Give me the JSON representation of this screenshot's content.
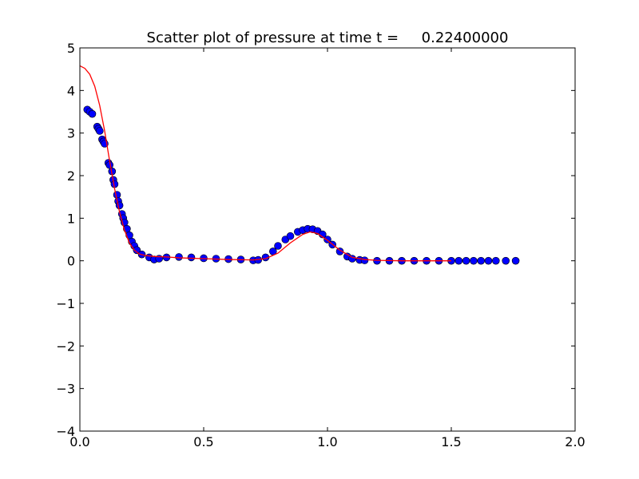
{
  "chart_data": {
    "type": "scatter",
    "title": "Scatter plot of pressure at time t =     0.22400000",
    "xlabel": "",
    "ylabel": "",
    "xlim": [
      0.0,
      2.0
    ],
    "ylim": [
      -4,
      5
    ],
    "x_ticks": [
      "0.0",
      "0.5",
      "1.0",
      "1.5",
      "2.0"
    ],
    "x_tick_values": [
      0.0,
      0.5,
      1.0,
      1.5,
      2.0
    ],
    "y_ticks": [
      "−4",
      "−3",
      "−2",
      "−1",
      "0",
      "1",
      "2",
      "3",
      "4",
      "5"
    ],
    "y_tick_values": [
      -4,
      -3,
      -2,
      -1,
      0,
      1,
      2,
      3,
      4,
      5
    ],
    "grid": false,
    "legend": "none",
    "colors": {
      "points_fill": "#0000ff",
      "points_edge": "#000000",
      "line": "#ff0000",
      "axes": "#000000"
    },
    "series": [
      {
        "kind": "points",
        "x": [
          0.03,
          0.04,
          0.05,
          0.07,
          0.075,
          0.08,
          0.09,
          0.095,
          0.1,
          0.115,
          0.12,
          0.13,
          0.135,
          0.14,
          0.15,
          0.155,
          0.16,
          0.17,
          0.175,
          0.18,
          0.19,
          0.2,
          0.21,
          0.22,
          0.23,
          0.25,
          0.28,
          0.3,
          0.32,
          0.35,
          0.4,
          0.45,
          0.5,
          0.55,
          0.6,
          0.65,
          0.7,
          0.72,
          0.75,
          0.78,
          0.8,
          0.83,
          0.85,
          0.88,
          0.9,
          0.92,
          0.94,
          0.96,
          0.98,
          1.0,
          1.02,
          1.05,
          1.08,
          1.1,
          1.13,
          1.15,
          1.2,
          1.25,
          1.3,
          1.35,
          1.4,
          1.45,
          1.5,
          1.53,
          1.56,
          1.59,
          1.62,
          1.65,
          1.68,
          1.72,
          1.76
        ],
        "y": [
          3.55,
          3.5,
          3.45,
          3.15,
          3.1,
          3.05,
          2.85,
          2.8,
          2.75,
          2.3,
          2.25,
          2.1,
          1.9,
          1.8,
          1.55,
          1.4,
          1.3,
          1.1,
          1.0,
          0.9,
          0.75,
          0.6,
          0.45,
          0.35,
          0.25,
          0.15,
          0.08,
          0.03,
          0.05,
          0.08,
          0.09,
          0.08,
          0.06,
          0.05,
          0.04,
          0.03,
          0.01,
          0.02,
          0.08,
          0.22,
          0.35,
          0.5,
          0.58,
          0.68,
          0.72,
          0.75,
          0.74,
          0.7,
          0.62,
          0.5,
          0.38,
          0.22,
          0.1,
          0.05,
          0.02,
          0.01,
          0.0,
          0.0,
          0.0,
          0.0,
          0.0,
          0.0,
          0.0,
          0.0,
          0.0,
          0.0,
          0.0,
          0.0,
          0.0,
          0.0,
          0.0
        ]
      },
      {
        "kind": "line",
        "x": [
          0.0,
          0.02,
          0.04,
          0.06,
          0.08,
          0.1,
          0.12,
          0.14,
          0.16,
          0.18,
          0.2,
          0.22,
          0.24,
          0.26,
          0.3,
          0.35,
          0.4,
          0.5,
          0.6,
          0.7,
          0.75,
          0.8,
          0.85,
          0.9,
          0.93,
          0.96,
          1.0,
          1.05,
          1.1,
          1.15,
          1.2,
          1.3,
          1.4,
          1.5
        ],
        "y": [
          4.58,
          4.52,
          4.38,
          4.1,
          3.65,
          3.05,
          2.35,
          1.7,
          1.15,
          0.72,
          0.42,
          0.25,
          0.16,
          0.13,
          0.1,
          0.09,
          0.07,
          0.05,
          0.03,
          0.02,
          0.05,
          0.18,
          0.42,
          0.62,
          0.68,
          0.64,
          0.48,
          0.25,
          0.08,
          0.03,
          0.01,
          0.0,
          0.0,
          0.0
        ]
      }
    ]
  }
}
